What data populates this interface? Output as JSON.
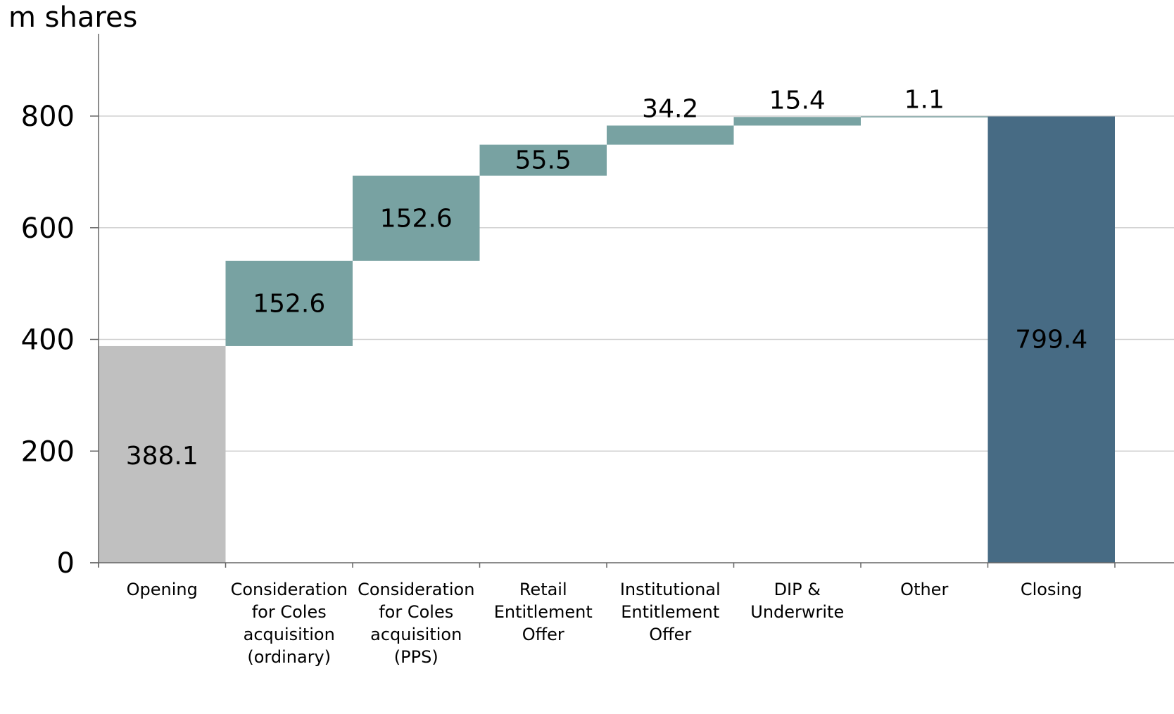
{
  "chart_data": {
    "type": "bar",
    "subtype": "waterfall",
    "unit_label": "m shares",
    "ylim": [
      0,
      900
    ],
    "yticks": [
      0,
      200,
      400,
      600,
      800
    ],
    "grid": true,
    "categories": [
      [
        "Opening"
      ],
      [
        "Consideration",
        "for Coles",
        "acquisition",
        "(ordinary)"
      ],
      [
        "Consideration",
        "for Coles",
        "acquisition",
        "(PPS)"
      ],
      [
        "Retail",
        "Entitlement",
        "Offer"
      ],
      [
        "Institutional",
        "Entitlement",
        "Offer"
      ],
      [
        "DIP &",
        "Underwrite"
      ],
      [
        "Other"
      ],
      [
        "Closing"
      ]
    ],
    "values": [
      388.1,
      152.6,
      152.6,
      55.5,
      34.2,
      15.4,
      1.1,
      799.4
    ],
    "labels": [
      "388.1",
      "152.6",
      "152.6",
      "55.5",
      "34.2",
      "15.4",
      "1.1",
      "799.4"
    ],
    "kinds": [
      "total",
      "delta",
      "delta",
      "delta",
      "delta",
      "delta",
      "delta",
      "total"
    ],
    "colors": {
      "opening": "#c0c0c0",
      "delta": "#78a2a2",
      "closing": "#476b84"
    }
  }
}
